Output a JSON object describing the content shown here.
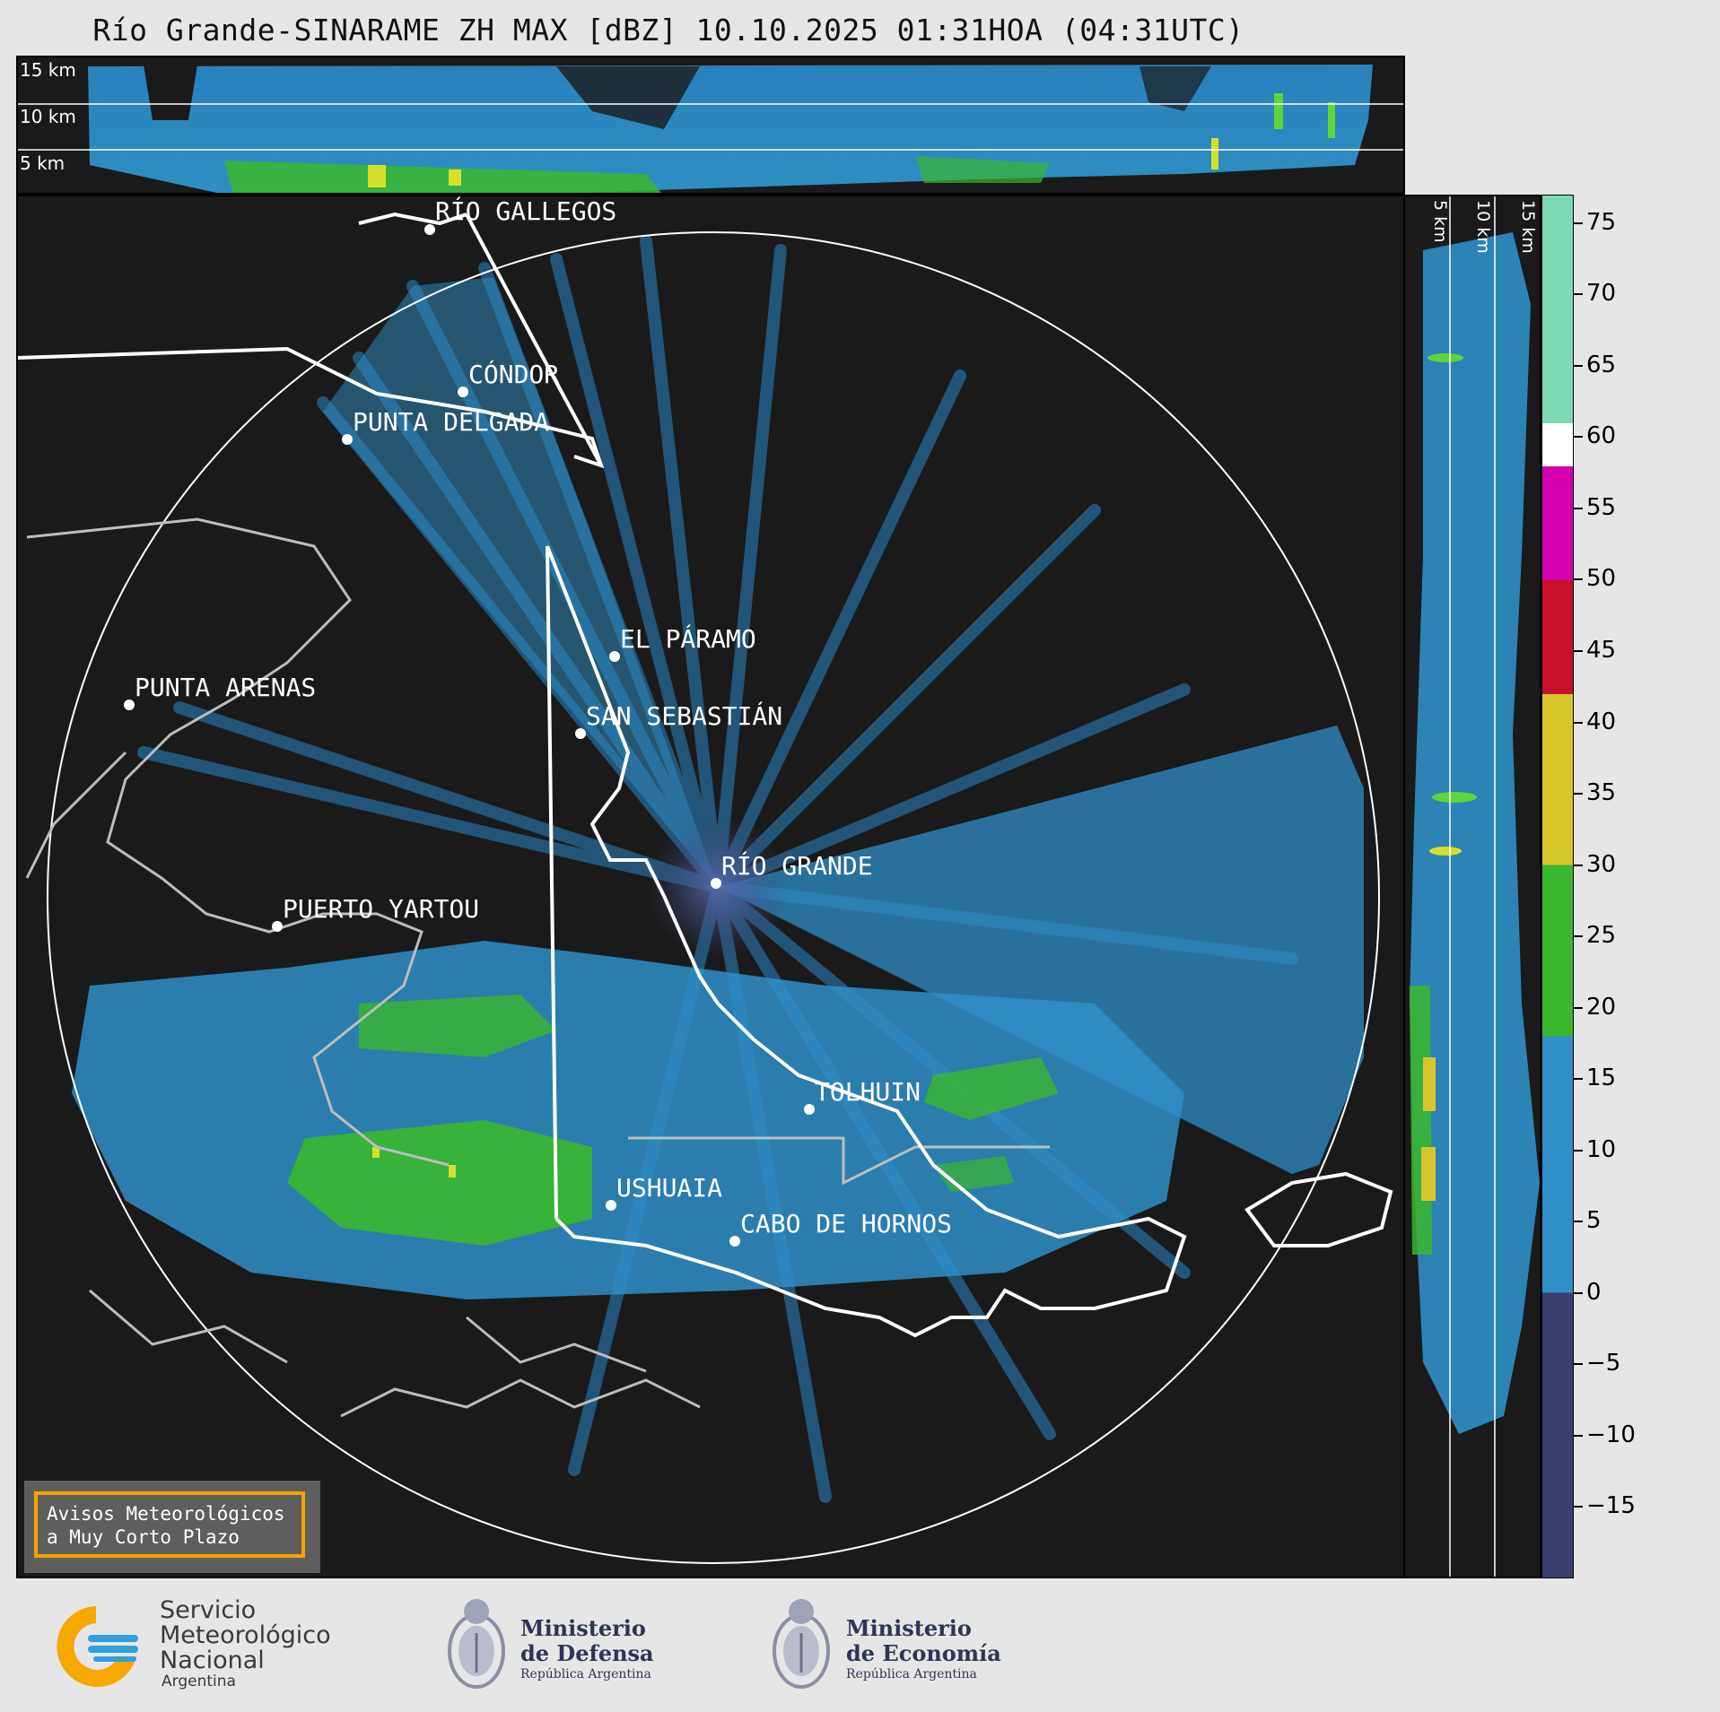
{
  "title": "Río Grande-SINARAME ZH MAX [dBZ] 10.10.2025 01:31HOA (04:31UTC)",
  "cross_section_top": {
    "altitude_labels": [
      "15 km",
      "10 km",
      "5 km"
    ]
  },
  "cross_section_right": {
    "altitude_labels": [
      "5 km",
      "10 km",
      "15 km"
    ]
  },
  "cities": [
    {
      "name": "RÍO GALLEGOS"
    },
    {
      "name": "CÓNDOR"
    },
    {
      "name": "PUNTA DELGADA"
    },
    {
      "name": "EL PÁRAMO"
    },
    {
      "name": "SAN SEBASTIÁN"
    },
    {
      "name": "PUNTA ARENAS"
    },
    {
      "name": "RÍO GRANDE"
    },
    {
      "name": "PUERTO YARTOU"
    },
    {
      "name": "TOLHUIN"
    },
    {
      "name": "USHUAIA"
    },
    {
      "name": "CABO DE HORNOS"
    }
  ],
  "colorbar": {
    "unit": "dBZ",
    "range": [
      -20,
      77
    ],
    "tick_labels": [
      "75",
      "70",
      "65",
      "60",
      "55",
      "50",
      "45",
      "40",
      "35",
      "30",
      "25",
      "20",
      "15",
      "10",
      "5",
      "0",
      "−5",
      "−10",
      "−15"
    ],
    "colors": {
      "below_0": "#3b3f6e",
      "0_18": "#2f8fc8",
      "18_30": "#39b82d",
      "30_42": "#d6c52b",
      "42_50": "#c9102b",
      "50_58": "#d400b0",
      "58_61": "#ffffff",
      "61_77": "#7fd9b5"
    }
  },
  "aviso": {
    "line1": "Avisos Meteorológicos",
    "line2": "a Muy Corto Plazo"
  },
  "logos": {
    "smn": {
      "line1": "Servicio",
      "line2": "Meteorológico",
      "line3": "Nacional",
      "line4": "Argentina"
    },
    "defensa": {
      "line1": "Ministerio",
      "line2": "de Defensa",
      "line3": "República Argentina"
    },
    "economia": {
      "line1": "Ministerio",
      "line2": "de Economía",
      "line3": "República Argentina"
    }
  }
}
